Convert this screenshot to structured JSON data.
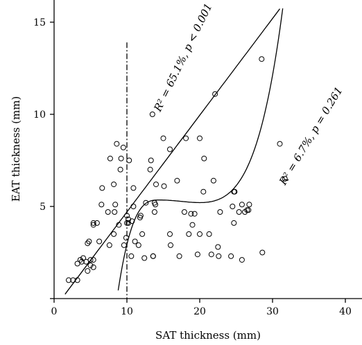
{
  "chart_data": {
    "type": "scatter",
    "xlabel": "SAT thickness (mm)",
    "ylabel": "EAT thickness (mm)",
    "xlim": [
      0,
      42
    ],
    "ylim": [
      0,
      15.8
    ],
    "x_ticks": [
      0,
      10,
      20,
      30,
      40
    ],
    "y_ticks": [
      5,
      10,
      15
    ],
    "grid": false,
    "reference_line_x": 10,
    "reference_line_style": "dash-dot",
    "points": [
      [
        2.0,
        1.0
      ],
      [
        2.6,
        1.0
      ],
      [
        3.2,
        1.0
      ],
      [
        3.2,
        1.9
      ],
      [
        3.6,
        2.1
      ],
      [
        3.8,
        2.0
      ],
      [
        4.0,
        2.2
      ],
      [
        4.4,
        2.0
      ],
      [
        4.6,
        3.0
      ],
      [
        4.8,
        3.1
      ],
      [
        4.6,
        1.5
      ],
      [
        5.0,
        1.8
      ],
      [
        5.0,
        2.1
      ],
      [
        5.4,
        2.1
      ],
      [
        5.4,
        1.7
      ],
      [
        5.4,
        4.0
      ],
      [
        5.4,
        4.1
      ],
      [
        5.9,
        4.1
      ],
      [
        6.5,
        5.1
      ],
      [
        6.6,
        6.0
      ],
      [
        6.2,
        3.1
      ],
      [
        7.4,
        4.7
      ],
      [
        7.6,
        2.9
      ],
      [
        7.7,
        7.6
      ],
      [
        8.2,
        6.2
      ],
      [
        8.2,
        3.5
      ],
      [
        8.3,
        4.7
      ],
      [
        8.4,
        5.1
      ],
      [
        8.6,
        8.4
      ],
      [
        8.9,
        4.0
      ],
      [
        9.1,
        7.0
      ],
      [
        9.2,
        7.6
      ],
      [
        9.5,
        8.2
      ],
      [
        9.6,
        2.9
      ],
      [
        9.9,
        3.3
      ],
      [
        10.0,
        4.1
      ],
      [
        10.0,
        4.5
      ],
      [
        10.2,
        4.1
      ],
      [
        10.2,
        4.3
      ],
      [
        10.3,
        7.5
      ],
      [
        10.6,
        2.3
      ],
      [
        10.7,
        4.2
      ],
      [
        10.9,
        5.0
      ],
      [
        10.9,
        6.0
      ],
      [
        11.1,
        3.1
      ],
      [
        11.6,
        2.9
      ],
      [
        11.8,
        4.4
      ],
      [
        11.9,
        4.5
      ],
      [
        12.1,
        3.5
      ],
      [
        12.4,
        2.2
      ],
      [
        12.6,
        5.2
      ],
      [
        13.2,
        7.0
      ],
      [
        13.3,
        7.5
      ],
      [
        13.5,
        10.0
      ],
      [
        13.6,
        2.3
      ],
      [
        13.6,
        2.3
      ],
      [
        13.8,
        5.2
      ],
      [
        13.8,
        4.7
      ],
      [
        13.9,
        5.1
      ],
      [
        14.0,
        6.2
      ],
      [
        15.0,
        8.7
      ],
      [
        15.1,
        6.1
      ],
      [
        15.9,
        3.5
      ],
      [
        16.0,
        2.9
      ],
      [
        15.9,
        8.1
      ],
      [
        16.9,
        6.4
      ],
      [
        17.2,
        2.3
      ],
      [
        17.9,
        4.7
      ],
      [
        18.1,
        8.7
      ],
      [
        18.5,
        3.5
      ],
      [
        18.8,
        4.6
      ],
      [
        19.0,
        4.0
      ],
      [
        19.3,
        4.6
      ],
      [
        19.7,
        2.4
      ],
      [
        20.0,
        8.7
      ],
      [
        20.0,
        3.5
      ],
      [
        20.5,
        5.8
      ],
      [
        20.6,
        7.6
      ],
      [
        21.3,
        3.5
      ],
      [
        21.6,
        2.4
      ],
      [
        21.9,
        6.4
      ],
      [
        22.1,
        11.1
      ],
      [
        22.5,
        2.8
      ],
      [
        22.6,
        2.3
      ],
      [
        22.8,
        4.7
      ],
      [
        24.3,
        2.3
      ],
      [
        24.5,
        5.0
      ],
      [
        24.7,
        4.1
      ],
      [
        24.7,
        5.8
      ],
      [
        24.8,
        5.8
      ],
      [
        25.4,
        4.7
      ],
      [
        25.8,
        2.1
      ],
      [
        25.8,
        5.1
      ],
      [
        26.2,
        4.7
      ],
      [
        26.5,
        4.8
      ],
      [
        26.7,
        4.8
      ],
      [
        26.8,
        5.1
      ],
      [
        28.5,
        13.0
      ],
      [
        28.6,
        2.5
      ],
      [
        31.0,
        8.4
      ],
      [
        31.7,
        6.5
      ]
    ],
    "curves": [
      {
        "label": "R² = 65.1%, p < 0.001",
        "model": "linear",
        "coefficients": [
          -0.55,
          0.525
        ]
      },
      {
        "label": "R² = 6.7%, p = 0.261",
        "model": "cubic"
      }
    ]
  }
}
